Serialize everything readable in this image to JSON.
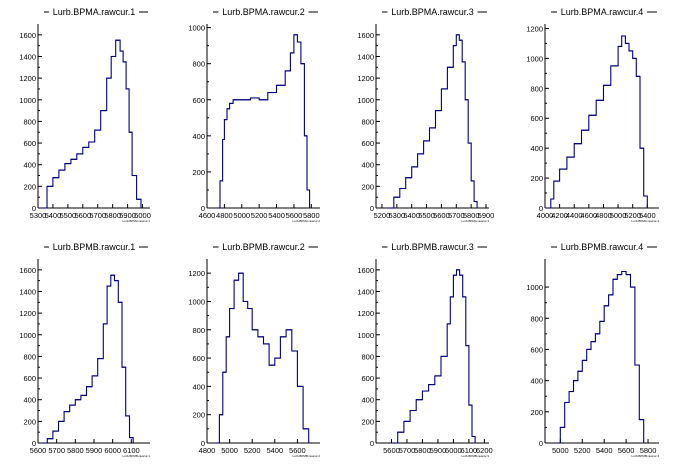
{
  "colors": {
    "line": "#000080",
    "axis": "#000000",
    "background": "#ffffff"
  },
  "chart_data": [
    {
      "type": "histogram",
      "title": "Lurb.BPMA.rawcur.1",
      "xlabel": "Lurb.BPMA.rawcur.1",
      "xlim": [
        5300,
        6050
      ],
      "ylim": [
        0,
        1700
      ],
      "xticks": [
        5300,
        5400,
        5500,
        5600,
        5700,
        5800,
        5900,
        6000
      ],
      "yticks": [
        0,
        200,
        400,
        600,
        800,
        1000,
        1200,
        1400,
        1600
      ],
      "x": [
        5320,
        5360,
        5400,
        5440,
        5480,
        5520,
        5560,
        5600,
        5640,
        5680,
        5720,
        5760,
        5790,
        5820,
        5850,
        5870,
        5890,
        5910,
        5930,
        5960,
        5990
      ],
      "values": [
        0,
        200,
        280,
        350,
        410,
        450,
        500,
        560,
        610,
        720,
        900,
        1200,
        1400,
        1550,
        1450,
        1350,
        1100,
        700,
        300,
        80,
        0
      ]
    },
    {
      "type": "histogram",
      "title": "Lurb.BPMA.rawcur.2",
      "xlabel": "Lurb.BPMA.rawcur.2",
      "xlim": [
        4600,
        5900
      ],
      "ylim": [
        0,
        1020
      ],
      "xticks": [
        4600,
        4800,
        5000,
        5200,
        5400,
        5600,
        5800
      ],
      "yticks": [
        0,
        200,
        400,
        600,
        800,
        1000
      ],
      "x": [
        4720,
        4750,
        4780,
        4800,
        4830,
        4860,
        4900,
        5000,
        5100,
        5200,
        5300,
        5400,
        5500,
        5560,
        5600,
        5640,
        5680,
        5720,
        5750,
        5780
      ],
      "values": [
        0,
        150,
        380,
        490,
        550,
        580,
        600,
        600,
        610,
        600,
        640,
        680,
        760,
        860,
        960,
        920,
        800,
        400,
        100,
        0
      ]
    },
    {
      "type": "histogram",
      "title": "Lurb.BPMA.rawcur.3",
      "xlabel": "Lurb.BPMA.rawcur.3",
      "xlim": [
        5160,
        5920
      ],
      "ylim": [
        0,
        1700
      ],
      "xticks": [
        5200,
        5300,
        5400,
        5500,
        5600,
        5700,
        5800,
        5900
      ],
      "yticks": [
        0,
        200,
        400,
        600,
        800,
        1000,
        1200,
        1400,
        1600
      ],
      "x": [
        5240,
        5280,
        5320,
        5360,
        5400,
        5440,
        5480,
        5520,
        5560,
        5600,
        5640,
        5680,
        5700,
        5720,
        5740,
        5760,
        5780,
        5800,
        5820,
        5840
      ],
      "values": [
        0,
        100,
        180,
        280,
        380,
        500,
        620,
        740,
        900,
        1100,
        1300,
        1500,
        1600,
        1550,
        1350,
        1000,
        600,
        250,
        60,
        0
      ]
    },
    {
      "type": "histogram",
      "title": "Lurb.BPMA.rawcur.4",
      "xlabel": "Lurb.BPMA.rawcur.4",
      "xlim": [
        4000,
        5560
      ],
      "ylim": [
        0,
        1230
      ],
      "xticks": [
        4000,
        4200,
        4400,
        4600,
        4800,
        5000,
        5200,
        5400
      ],
      "yticks": [
        0,
        200,
        400,
        600,
        800,
        1000,
        1200
      ],
      "x": [
        4040,
        4080,
        4120,
        4200,
        4300,
        4400,
        4500,
        4600,
        4700,
        4800,
        4900,
        5000,
        5050,
        5100,
        5150,
        5200,
        5250,
        5300,
        5350,
        5400
      ],
      "values": [
        0,
        60,
        180,
        260,
        340,
        430,
        520,
        620,
        720,
        820,
        950,
        1080,
        1150,
        1100,
        1050,
        1000,
        880,
        400,
        80,
        0
      ]
    },
    {
      "type": "histogram",
      "title": "Lurb.BPMB.rawcur.1",
      "xlabel": "Lurb.BPMB.rawcur.1",
      "xlim": [
        5600,
        6200
      ],
      "ylim": [
        0,
        1700
      ],
      "xticks": [
        5600,
        5700,
        5800,
        5900,
        6000,
        6100
      ],
      "yticks": [
        0,
        200,
        400,
        600,
        800,
        1000,
        1200,
        1400,
        1600
      ],
      "x": [
        5620,
        5650,
        5680,
        5710,
        5740,
        5770,
        5800,
        5830,
        5860,
        5890,
        5920,
        5950,
        5970,
        5990,
        6010,
        6030,
        6050,
        6070,
        6090,
        6110
      ],
      "values": [
        0,
        40,
        110,
        200,
        290,
        350,
        400,
        440,
        520,
        620,
        780,
        1100,
        1450,
        1550,
        1500,
        1300,
        700,
        250,
        50,
        0
      ]
    },
    {
      "type": "histogram",
      "title": "Lurb.BPMB.rawcur.2",
      "xlabel": "Lurb.BPMB.rawcur.2",
      "xlim": [
        4800,
        5800
      ],
      "ylim": [
        0,
        1300
      ],
      "xticks": [
        4800,
        5000,
        5200,
        5400,
        5600
      ],
      "yticks": [
        0,
        200,
        400,
        600,
        800,
        1000,
        1200
      ],
      "x": [
        4880,
        4910,
        4940,
        4970,
        5000,
        5040,
        5080,
        5120,
        5160,
        5200,
        5250,
        5300,
        5350,
        5400,
        5450,
        5500,
        5550,
        5600,
        5650,
        5700
      ],
      "values": [
        0,
        200,
        500,
        750,
        950,
        1150,
        1200,
        1000,
        950,
        800,
        750,
        700,
        550,
        600,
        750,
        800,
        650,
        400,
        100,
        0
      ]
    },
    {
      "type": "histogram",
      "title": "Lurb.BPMB.rawcur.3",
      "xlabel": "Lurb.BPMB.rawcur.3",
      "xlim": [
        5500,
        6230
      ],
      "ylim": [
        0,
        1700
      ],
      "xticks": [
        5600,
        5700,
        5800,
        5900,
        6000,
        6100,
        6200
      ],
      "yticks": [
        0,
        200,
        400,
        600,
        800,
        1000,
        1200,
        1400,
        1600
      ],
      "x": [
        5600,
        5640,
        5680,
        5720,
        5760,
        5800,
        5840,
        5880,
        5920,
        5960,
        5980,
        6000,
        6020,
        6040,
        6060,
        6080,
        6100,
        6120,
        6140
      ],
      "values": [
        0,
        100,
        200,
        300,
        400,
        480,
        540,
        620,
        800,
        1100,
        1350,
        1550,
        1600,
        1550,
        1350,
        900,
        350,
        60,
        0
      ]
    },
    {
      "type": "histogram",
      "title": "Lurb.BPMB.rawcur.4",
      "xlabel": "Lurb.BPMB.rawcur.4",
      "xlim": [
        4860,
        5900
      ],
      "ylim": [
        0,
        1180
      ],
      "xticks": [
        5000,
        5200,
        5400,
        5600,
        5800
      ],
      "yticks": [
        0,
        200,
        400,
        600,
        800,
        1000
      ],
      "x": [
        4980,
        5000,
        5040,
        5080,
        5120,
        5160,
        5200,
        5240,
        5280,
        5320,
        5360,
        5400,
        5440,
        5480,
        5520,
        5560,
        5600,
        5640,
        5680,
        5720,
        5760
      ],
      "values": [
        0,
        100,
        260,
        330,
        400,
        460,
        530,
        600,
        650,
        700,
        780,
        880,
        950,
        1050,
        1080,
        1100,
        1080,
        1000,
        500,
        150,
        0
      ]
    }
  ]
}
